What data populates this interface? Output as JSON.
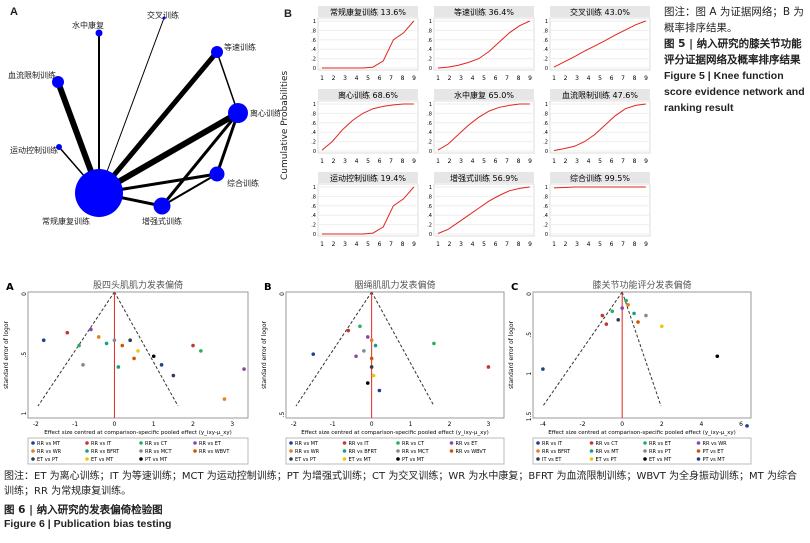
{
  "figure5": {
    "panel_a_label": "A",
    "panel_b_label": "B",
    "network_nodes": [
      {
        "id": "wr",
        "label": "水中康复"
      },
      {
        "id": "ct",
        "label": "交叉训练"
      },
      {
        "id": "it",
        "label": "等速训练"
      },
      {
        "id": "bfrt",
        "label": "血流限制训练"
      },
      {
        "id": "et",
        "label": "离心训练"
      },
      {
        "id": "mct",
        "label": "运动控制训练"
      },
      {
        "id": "mt",
        "label": "综合训练"
      },
      {
        "id": "pt",
        "label": "增强式训练"
      },
      {
        "id": "rr",
        "label": "常规康复训练"
      }
    ],
    "ylabel": "Cumulative Probabilities",
    "xticks": [
      "1",
      "2",
      "3",
      "4",
      "5",
      "6",
      "7",
      "8",
      "9"
    ],
    "rank_panels": [
      {
        "title": "常规康复训练 13.6%",
        "shape": "late"
      },
      {
        "title": "等速训练 36.4%",
        "shape": "mid"
      },
      {
        "title": "交叉训练 43.0%",
        "shape": "linear"
      },
      {
        "title": "离心训练 68.6%",
        "shape": "early"
      },
      {
        "title": "水中康复 65.0%",
        "shape": "early2"
      },
      {
        "title": "血流限制训练 47.6%",
        "shape": "mid2"
      },
      {
        "title": "运动控制训练 19.4%",
        "shape": "late"
      },
      {
        "title": "增强式训练 56.9%",
        "shape": "mid3"
      },
      {
        "title": "综合训练 99.5%",
        "shape": "top"
      }
    ],
    "caption_lines": [
      "图注：图 A 为证据网络；B 为概率排序结果。"
    ],
    "title_cn": "图 5 | 纳入研究的膝关节功能评分证据网络及概率排序结果",
    "title_en": "Figure 5 | Knee function score evidence network and ranking result"
  },
  "figure6": {
    "panels": [
      {
        "letter": "A",
        "title": "股四头肌肌力发表偏倚"
      },
      {
        "letter": "B",
        "title": "胭绳肌肌力发表偏倚"
      },
      {
        "letter": "C",
        "title": "膝关节功能评分发表偏倚"
      }
    ],
    "xlabel": "Effect size centred at comparison-specific pooled effect (y_ixy-μ_xy)",
    "ylabel": "standard error of logor",
    "legend_a": [
      "RR vs MT",
      "RR vs IT",
      "RR vs CT",
      "RR vs ET",
      "RR vs WR",
      "RR vs BFRT",
      "RR vs MCT",
      "RR vs WBVT",
      "ET vs PT",
      "ET vs MT",
      "PT vs MT"
    ],
    "legend_b": [
      "RR vs MT",
      "RR vs IT",
      "RR vs CT",
      "RR vs ET",
      "RR vs WR",
      "RR vs BFRT",
      "RR vs MCT",
      "RR vs WBVT",
      "ET vs PT",
      "ET vs MT",
      "PT vs MT"
    ],
    "legend_c": [
      "RR vs IT",
      "RR vs CT",
      "RR vs ET",
      "RR vs WR",
      "RR vs BFRT",
      "RR vs MT",
      "RR vs PT",
      "PT vs ET",
      "IT vs ET",
      "ET vs PT",
      "ET vs MT",
      "PT vs MT"
    ],
    "caption": "图注：ET 为离心训练；IT 为等速训练；MCT 为运动控制训练；PT 为增强式训练；CT 为交叉训练；WR 为水中康复；BFRT 为血流限制训练；WBVT 为全身振动训练；MT 为综合训练；RR 为常规康复训练。",
    "title_cn": "图 6 | 纳入研究的发表偏倚检验图",
    "title_en": "Figure 6 | Publication bias testing"
  }
}
